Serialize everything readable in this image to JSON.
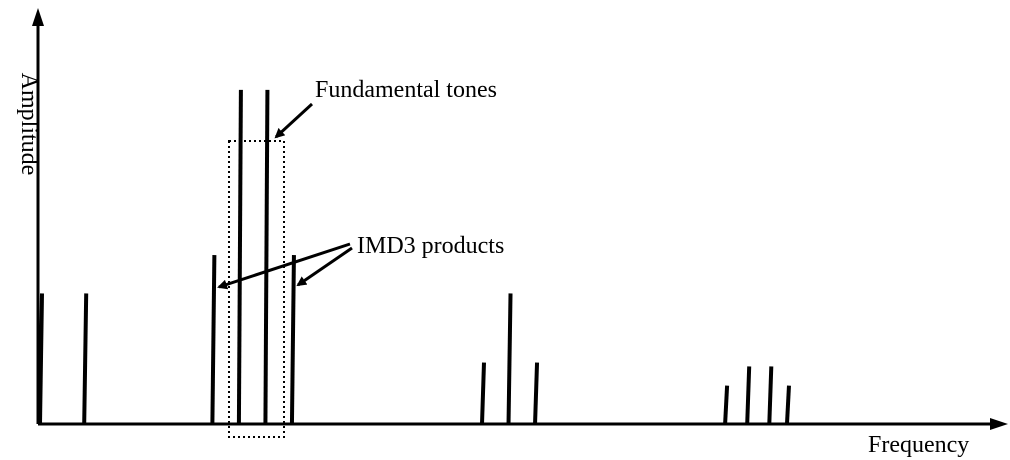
{
  "figure": {
    "y_axis_label": "Amplitude",
    "x_axis_label": "Frequency",
    "annotations": {
      "fundamental": "Fundamental tones",
      "imd3": "IMD3 products"
    }
  },
  "chart_data": {
    "type": "bar",
    "xlabel": "Frequency",
    "ylabel": "Amplitude",
    "grid": false,
    "series": [
      {
        "role": "dc-and-low",
        "lines": [
          {
            "x": 0,
            "amp": 0.34
          },
          {
            "x": 1,
            "amp": 0.34
          }
        ]
      },
      {
        "role": "fundamental",
        "lines": [
          {
            "x": 4.5,
            "amp": 0.87
          },
          {
            "x": 5.1,
            "amp": 0.87
          }
        ]
      },
      {
        "role": "imd3",
        "lines": [
          {
            "x": 3.9,
            "amp": 0.44
          },
          {
            "x": 5.7,
            "amp": 0.44
          }
        ]
      },
      {
        "role": "second-harmonic-region",
        "lines": [
          {
            "x": 10.0,
            "amp": 0.16
          },
          {
            "x": 10.6,
            "amp": 0.34
          },
          {
            "x": 11.2,
            "amp": 0.16
          }
        ]
      },
      {
        "role": "third-harmonic-region",
        "lines": [
          {
            "x": 15.5,
            "amp": 0.1
          },
          {
            "x": 16.0,
            "amp": 0.15
          },
          {
            "x": 16.5,
            "amp": 0.15
          },
          {
            "x": 16.9,
            "amp": 0.1
          }
        ]
      }
    ]
  },
  "style": {
    "ink": "#000000"
  }
}
